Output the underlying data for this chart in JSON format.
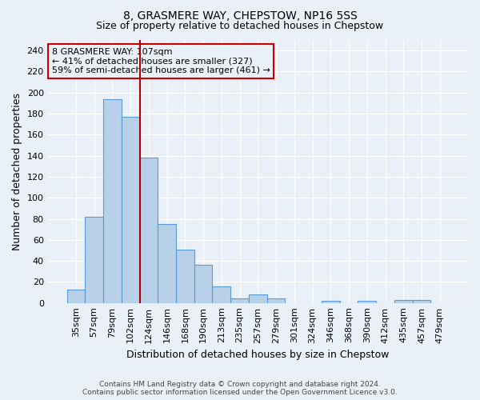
{
  "title": "8, GRASMERE WAY, CHEPSTOW, NP16 5SS",
  "subtitle": "Size of property relative to detached houses in Chepstow",
  "xlabel": "Distribution of detached houses by size in Chepstow",
  "ylabel": "Number of detached properties",
  "categories": [
    "35sqm",
    "57sqm",
    "79sqm",
    "102sqm",
    "124sqm",
    "146sqm",
    "168sqm",
    "190sqm",
    "213sqm",
    "235sqm",
    "257sqm",
    "279sqm",
    "301sqm",
    "324sqm",
    "346sqm",
    "368sqm",
    "390sqm",
    "412sqm",
    "435sqm",
    "457sqm",
    "479sqm"
  ],
  "values": [
    13,
    82,
    194,
    177,
    138,
    75,
    51,
    36,
    16,
    4,
    8,
    4,
    0,
    0,
    2,
    0,
    2,
    0,
    3,
    3,
    0
  ],
  "bar_color": "#b8d0e8",
  "bar_edge_color": "#5b9bd5",
  "bar_edge_width": 0.8,
  "vline_x": 3.5,
  "vline_color": "#aa0000",
  "annotation_line1": "8 GRASMERE WAY: 107sqm",
  "annotation_line2": "← 41% of detached houses are smaller (327)",
  "annotation_line3": "59% of semi-detached houses are larger (461) →",
  "annotation_box_color": "#cc0000",
  "ylim": [
    0,
    250
  ],
  "yticks": [
    0,
    20,
    40,
    60,
    80,
    100,
    120,
    140,
    160,
    180,
    200,
    220,
    240
  ],
  "bg_color": "#eaf0f8",
  "grid_color": "#ffffff",
  "title_fontsize": 10,
  "subtitle_fontsize": 9,
  "footer": "Contains HM Land Registry data © Crown copyright and database right 2024.\nContains public sector information licensed under the Open Government Licence v3.0."
}
